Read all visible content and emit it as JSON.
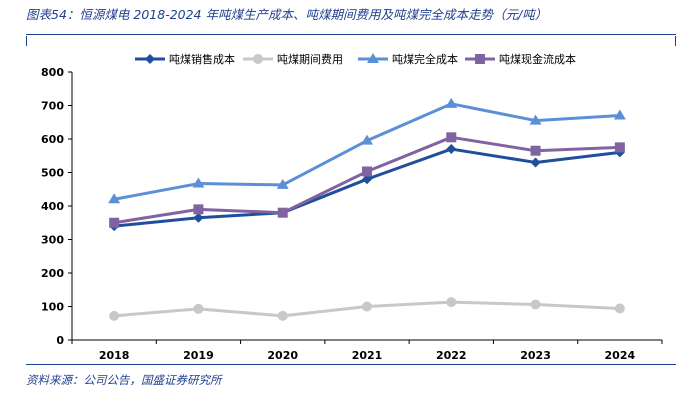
{
  "header": {
    "title": "图表54：恒源煤电 2018-2024 年吨煤生产成本、吨煤期间费用及吨煤完全成本走势（元/吨）"
  },
  "footer": {
    "source": "资料来源：公司公告，国盛证券研究所"
  },
  "chart_data": {
    "type": "line",
    "categories": [
      "2018",
      "2019",
      "2020",
      "2021",
      "2022",
      "2023",
      "2024"
    ],
    "ylim": [
      0,
      800
    ],
    "yticks": [
      0,
      100,
      200,
      300,
      400,
      500,
      600,
      700,
      800
    ],
    "grid": false,
    "legend_position": "top",
    "series": [
      {
        "name": "吨煤销售成本",
        "values": [
          340,
          365,
          380,
          480,
          570,
          530,
          560
        ],
        "color": "#1f4e9c",
        "marker": "diamond"
      },
      {
        "name": "吨煤期间费用",
        "values": [
          72,
          93,
          72,
          100,
          113,
          106,
          94
        ],
        "color": "#c8c8c8",
        "marker": "circle"
      },
      {
        "name": "吨煤完全成本",
        "values": [
          420,
          467,
          463,
          595,
          705,
          655,
          670
        ],
        "color": "#5b8fd6",
        "marker": "triangle"
      },
      {
        "name": "吨煤现金流成本",
        "values": [
          350,
          390,
          380,
          503,
          605,
          565,
          575
        ],
        "color": "#8064a2",
        "marker": "square"
      }
    ]
  }
}
